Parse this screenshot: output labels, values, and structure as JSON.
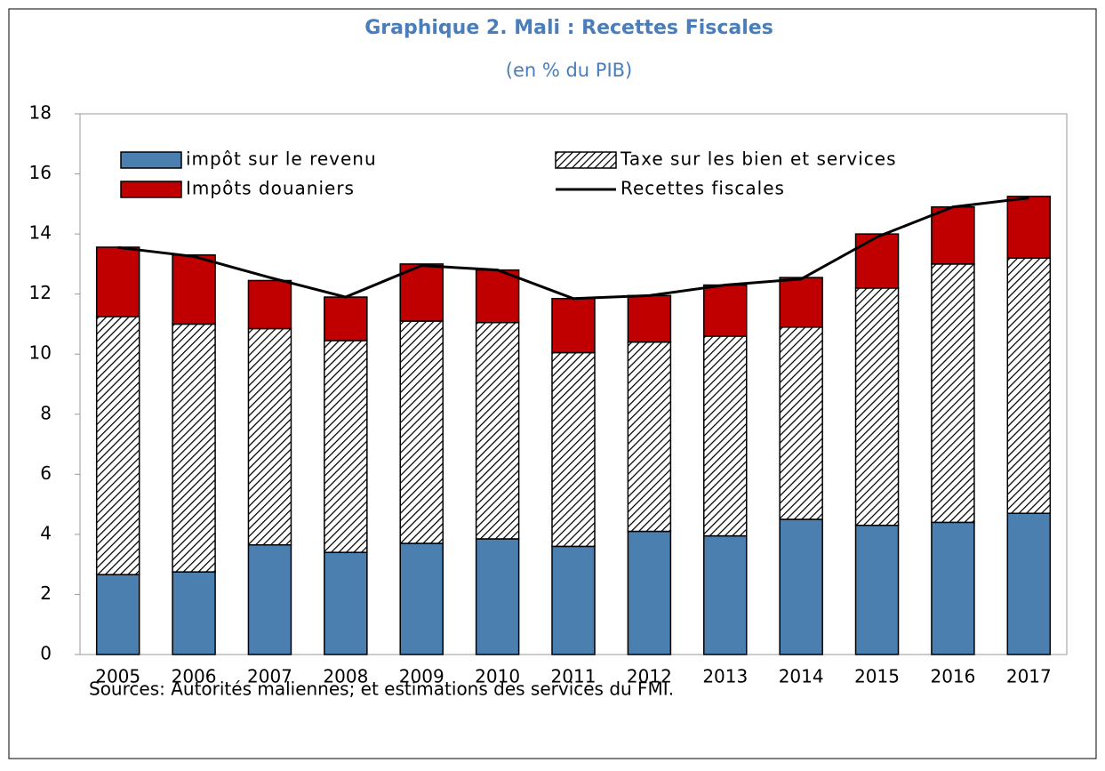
{
  "chart_data": {
    "type": "bar",
    "stacked": true,
    "title": "Graphique 2. Mali : Recettes Fiscales",
    "subtitle": "(en % du PIB)",
    "source": "Sources: Autorités maliennes; et estimations des services du FMI.",
    "categories": [
      "2005",
      "2006",
      "2007",
      "2008",
      "2009",
      "2010",
      "2011",
      "2012",
      "2013",
      "2014",
      "2015",
      "2016",
      "2017"
    ],
    "series": [
      {
        "name": "impôt sur le revenu",
        "color": "#4a7fb0",
        "values": [
          2.66,
          2.75,
          3.65,
          3.4,
          3.7,
          3.85,
          3.6,
          4.1,
          3.95,
          4.5,
          4.3,
          4.4,
          4.7
        ]
      },
      {
        "name": "Taxe sur les bien et services",
        "color": "#000000",
        "pattern": "hatch",
        "values": [
          8.59,
          8.25,
          7.2,
          7.05,
          7.4,
          7.2,
          6.45,
          6.3,
          6.65,
          6.4,
          7.9,
          8.6,
          8.5
        ]
      },
      {
        "name": "Impôts douaniers",
        "color": "#c00000",
        "values": [
          2.31,
          2.3,
          1.6,
          1.45,
          1.9,
          1.75,
          1.8,
          1.55,
          1.7,
          1.65,
          1.8,
          1.9,
          2.05
        ]
      },
      {
        "name": "Recettes fiscales",
        "type": "line",
        "color": "#000000",
        "values": [
          13.55,
          13.25,
          12.55,
          11.9,
          12.95,
          12.8,
          11.85,
          11.95,
          12.3,
          12.5,
          13.9,
          14.9,
          15.2
        ]
      }
    ],
    "ylim": [
      0,
      18
    ],
    "yticks": [
      0,
      2,
      4,
      6,
      8,
      10,
      12,
      14,
      16,
      18
    ],
    "grid": false
  }
}
